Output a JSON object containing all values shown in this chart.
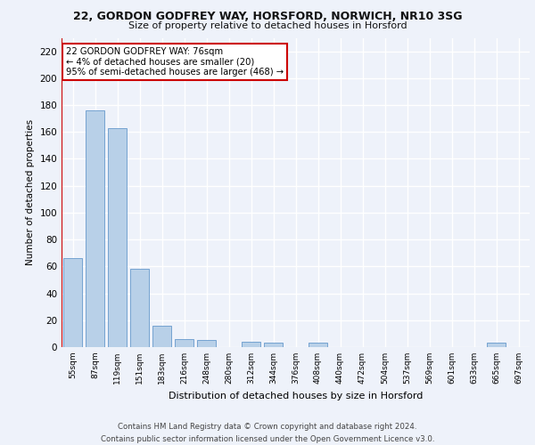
{
  "title_line1": "22, GORDON GODFREY WAY, HORSFORD, NORWICH, NR10 3SG",
  "title_line2": "Size of property relative to detached houses in Horsford",
  "xlabel": "Distribution of detached houses by size in Horsford",
  "ylabel": "Number of detached properties",
  "categories": [
    "55sqm",
    "87sqm",
    "119sqm",
    "151sqm",
    "183sqm",
    "216sqm",
    "248sqm",
    "280sqm",
    "312sqm",
    "344sqm",
    "376sqm",
    "408sqm",
    "440sqm",
    "472sqm",
    "504sqm",
    "537sqm",
    "569sqm",
    "601sqm",
    "633sqm",
    "665sqm",
    "697sqm"
  ],
  "values": [
    66,
    176,
    163,
    58,
    16,
    6,
    5,
    0,
    4,
    3,
    0,
    3,
    0,
    0,
    0,
    0,
    0,
    0,
    0,
    3,
    0
  ],
  "bar_color": "#b8d0e8",
  "bar_edge_color": "#6699cc",
  "ylim": [
    0,
    230
  ],
  "yticks": [
    0,
    20,
    40,
    60,
    80,
    100,
    120,
    140,
    160,
    180,
    200,
    220
  ],
  "vline_color": "#cc0000",
  "annotation_text": "22 GORDON GODFREY WAY: 76sqm\n← 4% of detached houses are smaller (20)\n95% of semi-detached houses are larger (468) →",
  "annotation_box_color": "#ffffff",
  "annotation_border_color": "#cc0000",
  "footer_text": "Contains HM Land Registry data © Crown copyright and database right 2024.\nContains public sector information licensed under the Open Government Licence v3.0.",
  "bg_color": "#eef2fa",
  "grid_color": "#ffffff"
}
